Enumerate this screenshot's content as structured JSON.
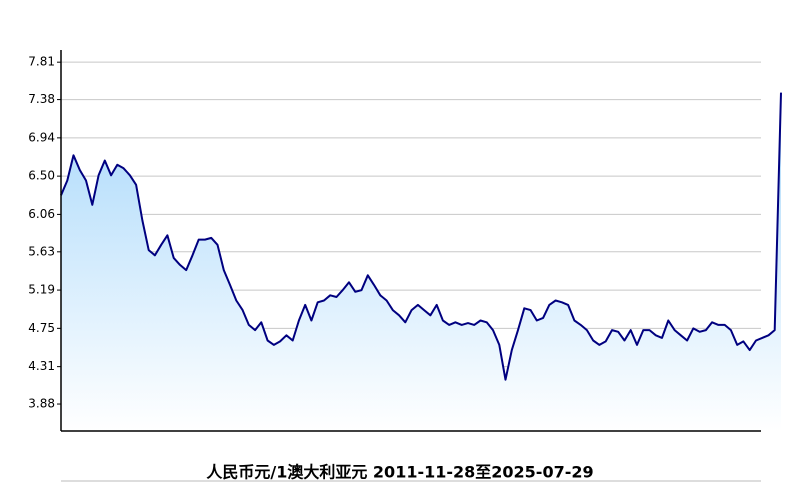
{
  "chart_data": {
    "type": "area",
    "title": "人民币元/1澳大利亚元  2011-11-28至2025-07-29",
    "color": "#000080",
    "fill_top": "#a8d8fb",
    "fill_bottom": "#ffffff",
    "grid": true,
    "ylim": [
      3.57,
      7.95
    ],
    "yticks": [
      {
        "value": 7.81,
        "label": "7.81"
      },
      7.38,
      6.94,
      {
        "value": 6.5,
        "label": "6.50"
      },
      6.06,
      5.63,
      5.19,
      4.75,
      4.31,
      3.88
    ],
    "values": [
      6.28,
      6.45,
      6.74,
      6.57,
      6.45,
      6.17,
      6.51,
      6.68,
      6.51,
      6.63,
      6.59,
      6.51,
      6.4,
      5.99,
      5.65,
      5.59,
      5.71,
      5.82,
      5.56,
      5.48,
      5.42,
      5.59,
      5.77,
      5.77,
      5.79,
      5.71,
      5.42,
      5.25,
      5.07,
      4.96,
      4.79,
      4.73,
      4.82,
      4.61,
      4.56,
      4.6,
      4.67,
      4.61,
      4.84,
      5.02,
      4.84,
      5.05,
      5.07,
      5.13,
      5.11,
      5.19,
      5.28,
      5.17,
      5.19,
      5.36,
      5.25,
      5.13,
      5.07,
      4.96,
      4.9,
      4.82,
      4.96,
      5.02,
      4.96,
      4.9,
      5.02,
      4.84,
      4.79,
      4.82,
      4.79,
      4.81,
      4.79,
      4.84,
      4.82,
      4.73,
      4.56,
      4.16,
      4.5,
      4.73,
      4.98,
      4.96,
      4.84,
      4.87,
      5.02,
      5.07,
      5.05,
      5.02,
      4.84,
      4.79,
      4.73,
      4.61,
      4.56,
      4.6,
      4.73,
      4.71,
      4.61,
      4.73,
      4.56,
      4.73,
      4.73,
      4.67,
      4.64,
      4.84,
      4.73,
      4.67,
      4.61,
      4.75,
      4.71,
      4.73,
      4.82,
      4.79,
      4.79,
      4.73,
      4.56,
      4.6,
      4.5,
      4.61,
      4.64,
      4.67,
      4.73,
      7.46
    ]
  }
}
